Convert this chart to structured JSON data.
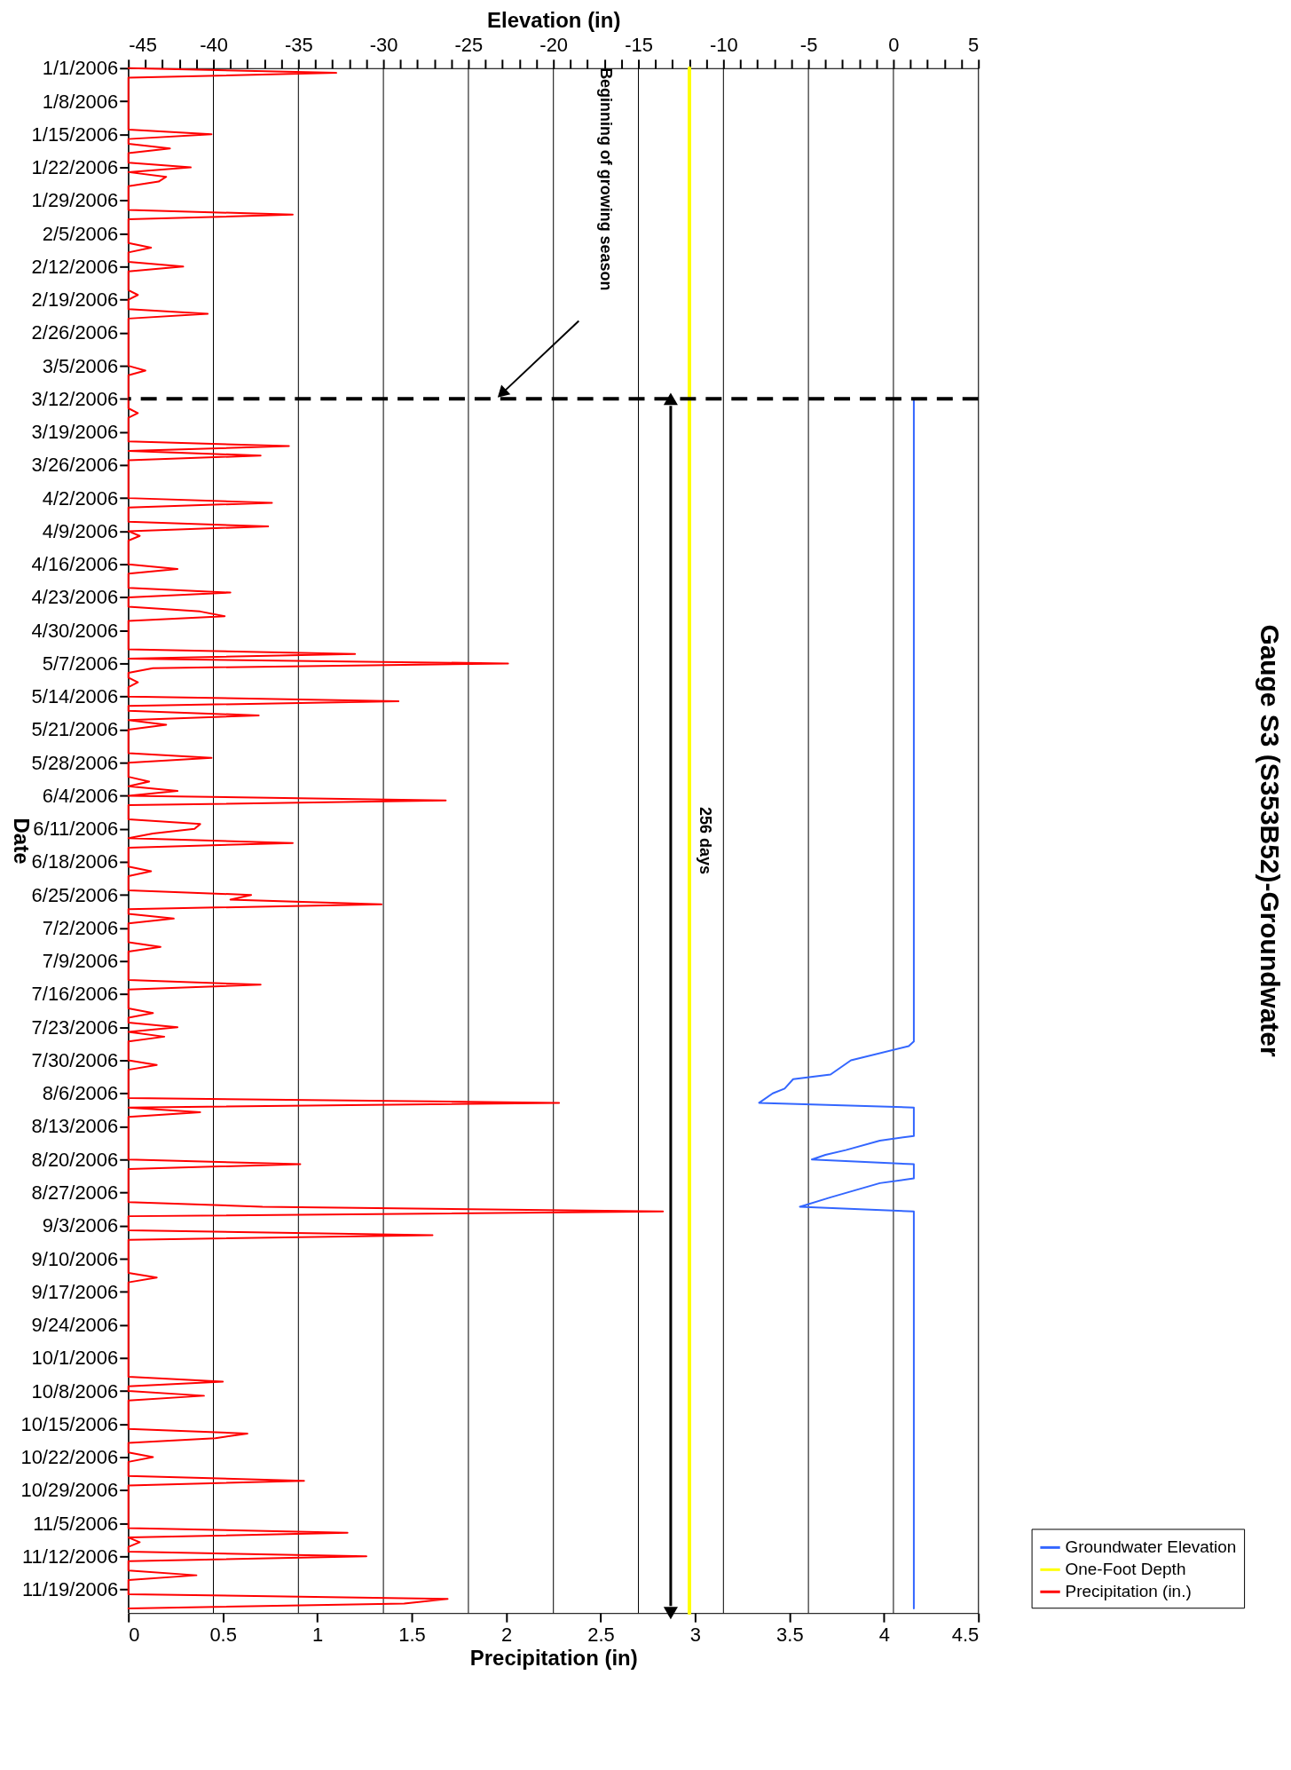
{
  "chart_data": {
    "type": "line",
    "title": "Gauge S3 (S353B52)-Groundwater",
    "ylabel": "Date",
    "xlabel": "Precipitation (in)",
    "x2label": "Elevation (in)",
    "orientation": "horizontal",
    "ylim": [
      "2006-11-24",
      "2006-01-01"
    ],
    "yticks": [
      {
        "value": "2006-01-01",
        "label": "1/1/2006"
      },
      {
        "value": "2006-01-08",
        "label": "1/8/2006"
      },
      {
        "value": "2006-01-15",
        "label": "1/15/2006"
      },
      {
        "value": "2006-01-22",
        "label": "1/22/2006"
      },
      {
        "value": "2006-01-29",
        "label": "1/29/2006"
      },
      {
        "value": "2006-02-05",
        "label": "2/5/2006"
      },
      {
        "value": "2006-02-12",
        "label": "2/12/2006"
      },
      {
        "value": "2006-02-19",
        "label": "2/19/2006"
      },
      {
        "value": "2006-02-26",
        "label": "2/26/2006"
      },
      {
        "value": "2006-03-05",
        "label": "3/5/2006"
      },
      {
        "value": "2006-03-12",
        "label": "3/12/2006"
      },
      {
        "value": "2006-03-19",
        "label": "3/19/2006"
      },
      {
        "value": "2006-03-26",
        "label": "3/26/2006"
      },
      {
        "value": "2006-04-02",
        "label": "4/2/2006"
      },
      {
        "value": "2006-04-09",
        "label": "4/9/2006"
      },
      {
        "value": "2006-04-16",
        "label": "4/16/2006"
      },
      {
        "value": "2006-04-23",
        "label": "4/23/2006"
      },
      {
        "value": "2006-04-30",
        "label": "4/30/2006"
      },
      {
        "value": "2006-05-07",
        "label": "5/7/2006"
      },
      {
        "value": "2006-05-14",
        "label": "5/14/2006"
      },
      {
        "value": "2006-05-21",
        "label": "5/21/2006"
      },
      {
        "value": "2006-05-28",
        "label": "5/28/2006"
      },
      {
        "value": "2006-06-04",
        "label": "6/4/2006"
      },
      {
        "value": "2006-06-11",
        "label": "6/11/2006"
      },
      {
        "value": "2006-06-18",
        "label": "6/18/2006"
      },
      {
        "value": "2006-06-25",
        "label": "6/25/2006"
      },
      {
        "value": "2006-07-02",
        "label": "7/2/2006"
      },
      {
        "value": "2006-07-09",
        "label": "7/9/2006"
      },
      {
        "value": "2006-07-16",
        "label": "7/16/2006"
      },
      {
        "value": "2006-07-23",
        "label": "7/23/2006"
      },
      {
        "value": "2006-07-30",
        "label": "7/30/2006"
      },
      {
        "value": "2006-08-06",
        "label": "8/6/2006"
      },
      {
        "value": "2006-08-13",
        "label": "8/13/2006"
      },
      {
        "value": "2006-08-20",
        "label": "8/20/2006"
      },
      {
        "value": "2006-08-27",
        "label": "8/27/2006"
      },
      {
        "value": "2006-09-03",
        "label": "9/3/2006"
      },
      {
        "value": "2006-09-10",
        "label": "9/10/2006"
      },
      {
        "value": "2006-09-17",
        "label": "9/17/2006"
      },
      {
        "value": "2006-09-24",
        "label": "9/24/2006"
      },
      {
        "value": "2006-10-01",
        "label": "10/1/2006"
      },
      {
        "value": "2006-10-08",
        "label": "10/8/2006"
      },
      {
        "value": "2006-10-15",
        "label": "10/15/2006"
      },
      {
        "value": "2006-10-22",
        "label": "10/22/2006"
      },
      {
        "value": "2006-10-29",
        "label": "10/29/2006"
      },
      {
        "value": "2006-11-05",
        "label": "11/5/2006"
      },
      {
        "value": "2006-11-12",
        "label": "11/12/2006"
      },
      {
        "value": "2006-11-19",
        "label": "11/19/2006"
      }
    ],
    "xlim": [
      0,
      4.5
    ],
    "xticks": [
      0,
      0.5,
      1,
      1.5,
      2,
      2.5,
      3,
      3.5,
      4,
      4.5
    ],
    "x2lim": [
      -45,
      5
    ],
    "x2ticks": [
      -45,
      {
        "value": -44,
        "label": null
      },
      {
        "value": -43,
        "label": null
      },
      {
        "value": -42,
        "label": null
      },
      {
        "value": -41,
        "label": null
      },
      -40,
      {
        "value": -39,
        "label": null
      },
      {
        "value": -38,
        "label": null
      },
      {
        "value": -37,
        "label": null
      },
      {
        "value": -36,
        "label": null
      },
      -35,
      {
        "value": -34,
        "label": null
      },
      {
        "value": -33,
        "label": null
      },
      {
        "value": -32,
        "label": null
      },
      {
        "value": -31,
        "label": null
      },
      -30,
      {
        "value": -29,
        "label": null
      },
      {
        "value": -28,
        "label": null
      },
      {
        "value": -27,
        "label": null
      },
      {
        "value": -26,
        "label": null
      },
      -25,
      {
        "value": -24,
        "label": null
      },
      {
        "value": -23,
        "label": null
      },
      {
        "value": -22,
        "label": null
      },
      {
        "value": -21,
        "label": null
      },
      -20,
      {
        "value": -19,
        "label": null
      },
      {
        "value": -18,
        "label": null
      },
      {
        "value": -17,
        "label": null
      },
      {
        "value": -16,
        "label": null
      },
      -15,
      {
        "value": -14,
        "label": null
      },
      {
        "value": -13,
        "label": null
      },
      {
        "value": -12,
        "label": null
      },
      {
        "value": -11,
        "label": null
      },
      -10,
      {
        "value": -9,
        "label": null
      },
      {
        "value": -8,
        "label": null
      },
      {
        "value": -7,
        "label": null
      },
      {
        "value": -6,
        "label": null
      },
      -5,
      {
        "value": -4,
        "label": null
      },
      {
        "value": -3,
        "label": null
      },
      {
        "value": -2,
        "label": null
      },
      {
        "value": -1,
        "label": null
      },
      0,
      {
        "value": 1,
        "label": null
      },
      {
        "value": 2,
        "label": null
      },
      {
        "value": 3,
        "label": null
      },
      {
        "value": 4,
        "label": null
      },
      5
    ],
    "grid": "x2",
    "legend": "bottom right",
    "series": [
      {
        "name": "Groundwater Elevation",
        "color": "#3366ff",
        "axis": "x2",
        "x": [
          "2006-03-12",
          "2006-07-26",
          "2006-07-27",
          "2006-07-30",
          "2006-08-02",
          "2006-08-03",
          "2006-08-05",
          "2006-08-06",
          "2006-08-08",
          "2006-08-09",
          "2006-08-15",
          "2006-08-16",
          "2006-08-18",
          "2006-08-19",
          "2006-08-20",
          "2006-08-21",
          "2006-08-24",
          "2006-08-25",
          "2006-08-28",
          "2006-08-30",
          "2006-08-31",
          "2006-11-23"
        ],
        "values": [
          1.2,
          1.2,
          0.9,
          -2.5,
          -3.7,
          -5.9,
          -6.4,
          -7.1,
          -7.9,
          1.2,
          1.2,
          -0.8,
          -2.8,
          -4.0,
          -4.8,
          1.2,
          1.2,
          -0.8,
          -3.7,
          -5.5,
          1.2,
          1.2
        ]
      },
      {
        "name": "One-Foot Depth",
        "color": "#ffff00",
        "axis": "x2",
        "x": [
          "2006-01-01",
          "2006-11-24"
        ],
        "values": [
          -12,
          -12
        ]
      },
      {
        "name": "Precipitation (in.)",
        "color": "#ff0000",
        "x": [
          "2006-01-01",
          "2006-01-02",
          "2006-01-03",
          "2006-01-14",
          "2006-01-15",
          "2006-01-16",
          "2006-01-17",
          "2006-01-18",
          "2006-01-19",
          "2006-01-21",
          "2006-01-22",
          "2006-01-23",
          "2006-01-24",
          "2006-01-25",
          "2006-01-26",
          "2006-01-31",
          "2006-02-01",
          "2006-02-02",
          "2006-02-07",
          "2006-02-08",
          "2006-02-09",
          "2006-02-11",
          "2006-02-12",
          "2006-02-13",
          "2006-02-17",
          "2006-02-18",
          "2006-02-19",
          "2006-02-21",
          "2006-02-22",
          "2006-02-23",
          "2006-03-05",
          "2006-03-06",
          "2006-03-07",
          "2006-03-14",
          "2006-03-15",
          "2006-03-16",
          "2006-03-21",
          "2006-03-22",
          "2006-03-23",
          "2006-03-24",
          "2006-03-25",
          "2006-04-02",
          "2006-04-03",
          "2006-04-04",
          "2006-04-07",
          "2006-04-08",
          "2006-04-09",
          "2006-04-10",
          "2006-04-11",
          "2006-04-16",
          "2006-04-17",
          "2006-04-18",
          "2006-04-21",
          "2006-04-22",
          "2006-04-23",
          "2006-04-25",
          "2006-04-26",
          "2006-04-27",
          "2006-04-28",
          "2006-05-04",
          "2006-05-05",
          "2006-05-06",
          "2006-05-07",
          "2006-05-08",
          "2006-05-09",
          "2006-05-10",
          "2006-05-11",
          "2006-05-12",
          "2006-05-14",
          "2006-05-15",
          "2006-05-16",
          "2006-05-17",
          "2006-05-18",
          "2006-05-19",
          "2006-05-20",
          "2006-05-21",
          "2006-05-26",
          "2006-05-27",
          "2006-05-28",
          "2006-05-31",
          "2006-06-01",
          "2006-06-02",
          "2006-06-03",
          "2006-06-04",
          "2006-06-05",
          "2006-06-06",
          "2006-06-09",
          "2006-06-10",
          "2006-06-11",
          "2006-06-12",
          "2006-06-13",
          "2006-06-14",
          "2006-06-15",
          "2006-06-19",
          "2006-06-20",
          "2006-06-21",
          "2006-06-24",
          "2006-06-25",
          "2006-06-26",
          "2006-06-27",
          "2006-06-28",
          "2006-06-29",
          "2006-06-30",
          "2006-07-01",
          "2006-07-05",
          "2006-07-06",
          "2006-07-07",
          "2006-07-13",
          "2006-07-14",
          "2006-07-15",
          "2006-07-19",
          "2006-07-20",
          "2006-07-21",
          "2006-07-22",
          "2006-07-23",
          "2006-07-24",
          "2006-07-25",
          "2006-07-26",
          "2006-07-30",
          "2006-07-31",
          "2006-08-01",
          "2006-08-07",
          "2006-08-08",
          "2006-08-09",
          "2006-08-10",
          "2006-08-11",
          "2006-08-20",
          "2006-08-21",
          "2006-08-22",
          "2006-08-29",
          "2006-08-30",
          "2006-08-31",
          "2006-09-01",
          "2006-09-04",
          "2006-09-05",
          "2006-09-06",
          "2006-09-13",
          "2006-09-14",
          "2006-09-15",
          "2006-10-05",
          "2006-10-06",
          "2006-10-07",
          "2006-10-08",
          "2006-10-09",
          "2006-10-10",
          "2006-10-16",
          "2006-10-17",
          "2006-10-18",
          "2006-10-19",
          "2006-10-21",
          "2006-10-22",
          "2006-10-23",
          "2006-10-26",
          "2006-10-27",
          "2006-10-28",
          "2006-11-06",
          "2006-11-07",
          "2006-11-08",
          "2006-11-09",
          "2006-11-10",
          "2006-11-11",
          "2006-11-12",
          "2006-11-13",
          "2006-11-15",
          "2006-11-16",
          "2006-11-17",
          "2006-11-20",
          "2006-11-21",
          "2006-11-22",
          "2006-11-23"
        ],
        "values": [
          0,
          1.1,
          0,
          0,
          0.44,
          0,
          0,
          0.22,
          0,
          0,
          0.33,
          0,
          0.2,
          0.16,
          0,
          0,
          0.87,
          0,
          0,
          0.12,
          0,
          0,
          0.29,
          0,
          0,
          0.05,
          0,
          0,
          0.42,
          0,
          0,
          0.09,
          0,
          0,
          0.05,
          0,
          0,
          0.85,
          0,
          0.7,
          0,
          0,
          0.76,
          0,
          0,
          0.74,
          0,
          0.06,
          0,
          0,
          0.26,
          0,
          0,
          0.54,
          0,
          0,
          0.38,
          0.51,
          0,
          0,
          1.2,
          0,
          2.01,
          0.13,
          0,
          0,
          0.05,
          0,
          0,
          1.43,
          0,
          0,
          0.69,
          0,
          0.2,
          0,
          0,
          0.44,
          0,
          0,
          0.11,
          0,
          0.26,
          0,
          1.68,
          0,
          0,
          0.38,
          0.35,
          0.13,
          0,
          0.87,
          0,
          0,
          0.12,
          0,
          0,
          0.65,
          0.54,
          1.34,
          0,
          0,
          0.24,
          0,
          0,
          0.17,
          0,
          0,
          0.7,
          0,
          0,
          0.13,
          0,
          0,
          0.26,
          0,
          0.19,
          0,
          0,
          0.15,
          0,
          0,
          2.28,
          0,
          0.38,
          0,
          0,
          0.91,
          0,
          0,
          0.71,
          2.83,
          0,
          0,
          1.61,
          0,
          0,
          0.15,
          0,
          0,
          0.5,
          0,
          0,
          0.4,
          0,
          0,
          0.63,
          0.46,
          0,
          0,
          0.13,
          0,
          0,
          0.93,
          0,
          0,
          1.16,
          0,
          0.06,
          0,
          0,
          1.26,
          0,
          0,
          0.36,
          0,
          0,
          1.69,
          1.46,
          0
        ]
      }
    ],
    "ref_lines": [
      {
        "axis": "y",
        "value": "2006-03-12",
        "color": "#000000",
        "line_style": "dashed"
      }
    ],
    "annotations": [
      "Beginning of growing season",
      "256 days"
    ]
  }
}
